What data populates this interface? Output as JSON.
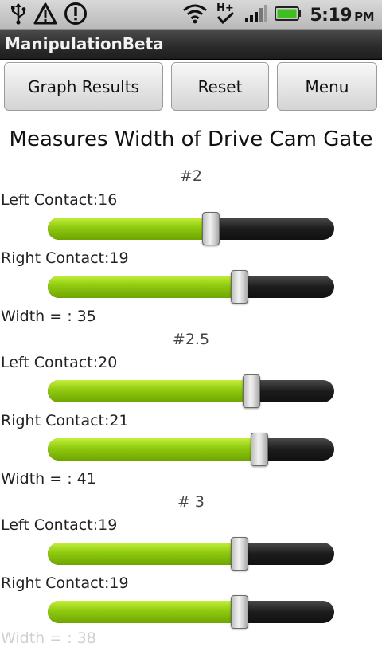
{
  "status_bar": {
    "time": "5:19",
    "ampm": "PM",
    "icons": [
      "usb-icon",
      "warning-icon",
      "alert-icon",
      "wifi-icon",
      "hplus-data-icon",
      "signal-icon",
      "battery-icon"
    ]
  },
  "app": {
    "title": "ManipulationBeta"
  },
  "buttons": {
    "graph_results": "Graph Results",
    "reset": "Reset",
    "menu": "Menu"
  },
  "heading": "Measures Width of Drive Cam Gate",
  "sections": [
    {
      "title": "#2",
      "left_label": "Left Contact:16",
      "left_level": 0.57,
      "right_label": "Right Contact:19",
      "right_level": 0.67,
      "width_label": "Width = : 35"
    },
    {
      "title": "#2.5",
      "left_label": "Left Contact:20",
      "left_level": 0.71,
      "right_label": "Right Contact:21",
      "right_level": 0.74,
      "width_label": "Width = : 41"
    },
    {
      "title": "# 3",
      "left_label": "Left Contact:19",
      "left_level": 0.67,
      "right_label": "Right Contact:19",
      "right_level": 0.67,
      "width_label": "Width = : 38"
    }
  ],
  "colors": {
    "slider_fill": "#8fca10",
    "slider_track": "#1c1c1c",
    "title_bar": "#2a2a2a",
    "status_bar": "#c8c8c8"
  }
}
